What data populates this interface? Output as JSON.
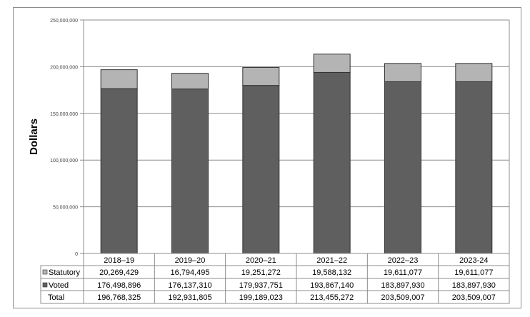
{
  "chart_data": {
    "type": "bar",
    "stacked": true,
    "ylabel": "Dollars",
    "xlabel": "",
    "ylim": [
      0,
      250000000
    ],
    "yticks": [
      0,
      50000000,
      100000000,
      150000000,
      200000000,
      250000000
    ],
    "ytick_labels": [
      "0",
      "50,000,000",
      "100,000,000",
      "150,000,000",
      "200,000,000",
      "250,000,000"
    ],
    "grid": true,
    "categories": [
      "2018–19",
      "2019–20",
      "2020–21",
      "2021–22",
      "2022–23",
      "2023-24"
    ],
    "series": [
      {
        "name": "Statutory",
        "color": "#b4b4b4",
        "values": [
          20269429,
          16794495,
          19251272,
          19588132,
          19611077,
          19611077
        ],
        "labels": [
          "20,269,429",
          "16,794,495",
          "19,251,272",
          "19,588,132",
          "19,611,077",
          "19,611,077"
        ]
      },
      {
        "name": "Voted",
        "color": "#5f5f5f",
        "values": [
          176498896,
          176137310,
          179937751,
          193867140,
          183897930,
          183897930
        ],
        "labels": [
          "176,498,896",
          "176,137,310",
          "179,937,751",
          "193,867,140",
          "183,897,930",
          "183,897,930"
        ]
      }
    ],
    "total": {
      "name": "Total",
      "values": [
        196768325,
        192931805,
        199189023,
        213455272,
        203509007,
        203509007
      ],
      "labels": [
        "196,768,325",
        "192,931,805",
        "199,189,023",
        "213,455,272",
        "203,509,007",
        "203,509,007"
      ]
    },
    "legend": "data-table"
  }
}
